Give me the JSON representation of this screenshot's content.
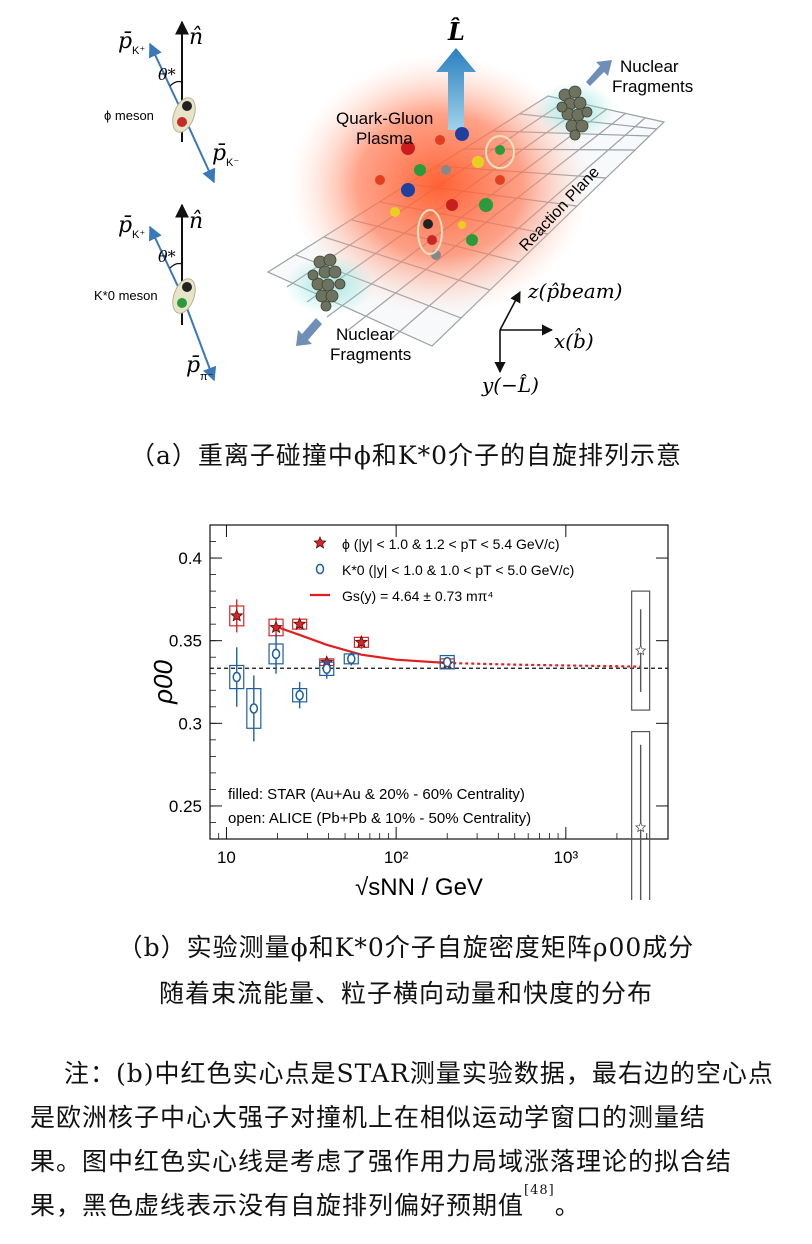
{
  "figure_a": {
    "phi_panel": {
      "n_label": "n̂",
      "pk_plus": "p̄",
      "pk_plus_sub": "K⁺",
      "theta": "θ*",
      "meson_label": "ϕ meson",
      "pk_minus": "p̄",
      "pk_minus_sub": "K⁻"
    },
    "kstar_panel": {
      "n_label": "n̂",
      "pk_plus": "p̄",
      "pk_plus_sub": "K⁺",
      "theta": "θ*",
      "meson_label": "K*0 meson",
      "ppi": "p̄",
      "ppi_sub": "π⁻"
    },
    "collision": {
      "L_label": "L̂",
      "qgp_line1": "Quark-Gluon",
      "qgp_line2": "Plasma",
      "reaction_plane": "Reaction Plane",
      "frag_top_1": "Nuclear",
      "frag_top_2": "Fragments",
      "frag_bottom_1": "Nuclear",
      "frag_bottom_2": "Fragments",
      "z_axis": "z(p̂beam)",
      "x_axis": "x(b̂)",
      "y_axis": "y(−L̂)"
    },
    "caption": "（a）重离子碰撞中ϕ和K*0介子的自旋排列示意"
  },
  "chart_data": {
    "type": "scatter",
    "xscale": "log",
    "xlim": [
      8,
      4000
    ],
    "ylim": [
      0.23,
      0.42
    ],
    "xlabel": "√sNN / GeV",
    "ylabel": "ρ00",
    "x_ticks": [
      "10",
      "10²",
      "10³"
    ],
    "y_ticks": [
      "0.25",
      "0.3",
      "0.35",
      "0.4"
    ],
    "legend": [
      {
        "marker": "star-filled",
        "text": "ϕ  (|y| < 1.0 & 1.2 < pT < 5.4 GeV/c)"
      },
      {
        "marker": "circle-filled",
        "text": "K*0 (|y| < 1.0 & 1.0 < pT < 5.0 GeV/c)"
      },
      {
        "marker": "line",
        "text": "Gs(y) = 4.64 ± 0.73 mπ⁴"
      }
    ],
    "notes": [
      "filled: STAR (Au+Au & 20% - 60% Centrality)",
      "open: ALICE (Pb+Pb & 10% - 50% Centrality)"
    ],
    "reference_line": 0.3333,
    "series": [
      {
        "name": "ϕ",
        "color": "#d62728",
        "points": [
          {
            "x": 11.5,
            "y": 0.365,
            "err": 0.01,
            "sys": 0.006
          },
          {
            "x": 19.6,
            "y": 0.358,
            "err": 0.006,
            "sys": 0.005
          },
          {
            "x": 27,
            "y": 0.36,
            "err": 0.003,
            "sys": 0.003
          },
          {
            "x": 39,
            "y": 0.337,
            "err": 0.003,
            "sys": 0.002
          },
          {
            "x": 62.4,
            "y": 0.349,
            "err": 0.004,
            "sys": 0.003
          },
          {
            "x": 200,
            "y": 0.336,
            "err": 0.002,
            "sys": 0.003
          }
        ]
      },
      {
        "name": "K*0",
        "color": "#1f5fa0",
        "points": [
          {
            "x": 11.5,
            "y": 0.328,
            "err": 0.018,
            "sys": 0.007
          },
          {
            "x": 14.5,
            "y": 0.309,
            "err": 0.02,
            "sys": 0.012
          },
          {
            "x": 19.6,
            "y": 0.342,
            "err": 0.012,
            "sys": 0.006
          },
          {
            "x": 27,
            "y": 0.317,
            "err": 0.008,
            "sys": 0.004
          },
          {
            "x": 39,
            "y": 0.333,
            "err": 0.006,
            "sys": 0.004
          },
          {
            "x": 54.4,
            "y": 0.339,
            "err": 0.004,
            "sys": 0.003
          },
          {
            "x": 200,
            "y": 0.337,
            "err": 0.003,
            "sys": 0.004
          }
        ]
      },
      {
        "name": "ALICE",
        "color": "#555555",
        "points": [
          {
            "x": 2760,
            "y": 0.344,
            "err": 0.025,
            "sys": 0.036
          },
          {
            "x": 2760,
            "y": 0.237,
            "err": 0.05,
            "sys": 0.058
          }
        ]
      }
    ],
    "fit_curve": [
      {
        "x": 19.6,
        "y": 0.3585
      },
      {
        "x": 27,
        "y": 0.3535
      },
      {
        "x": 39,
        "y": 0.3475
      },
      {
        "x": 62.4,
        "y": 0.3415
      },
      {
        "x": 100,
        "y": 0.3385
      },
      {
        "x": 200,
        "y": 0.3365
      }
    ],
    "fit_extrapolation": [
      {
        "x": 200,
        "y": 0.3365
      },
      {
        "x": 500,
        "y": 0.3355
      },
      {
        "x": 1000,
        "y": 0.335
      },
      {
        "x": 2760,
        "y": 0.3343
      }
    ]
  },
  "figure_b_caption_line1": "（b）实验测量ϕ和K*0介子自旋密度矩阵ρ00成分",
  "figure_b_caption_line2": "随着束流能量、粒子横向动量和快度的分布",
  "note_lines": [
    "注：(b)中红色实心点是STAR测量实验数据，最右边的空心点",
    "是欧洲核子中心大强子对撞机上在相似运动学窗口的测量结",
    "果。图中红色实心线是考虑了强作用力局域涨落理论的拟合结",
    "果，黑色虚线表示没有自旋排列偏好预期值"
  ],
  "note_ref": "[48]",
  "note_end": "。"
}
